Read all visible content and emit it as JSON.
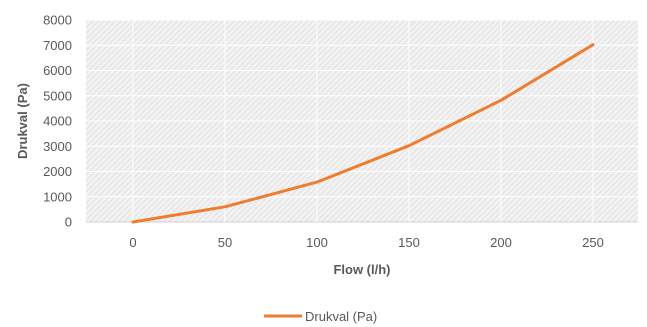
{
  "chart_data": {
    "type": "line",
    "title": "",
    "xlabel": "Flow (l/h)",
    "ylabel": "Drukval (Pa)",
    "categories": [
      "0",
      "50",
      "100",
      "150",
      "200",
      "250"
    ],
    "x": [
      0,
      50,
      100,
      150,
      200,
      250
    ],
    "xlim": [
      0,
      250
    ],
    "ylim": [
      0,
      8000
    ],
    "yticks": [
      "0",
      "1000",
      "2000",
      "3000",
      "4000",
      "5000",
      "6000",
      "7000",
      "8000"
    ],
    "grid": true,
    "plot_background": "hatched",
    "legend_position": "bottom",
    "series": [
      {
        "name": "Drukval (Pa)",
        "color": "#ED7D31",
        "values": [
          0,
          600,
          1580,
          3020,
          4820,
          7020
        ]
      }
    ]
  }
}
